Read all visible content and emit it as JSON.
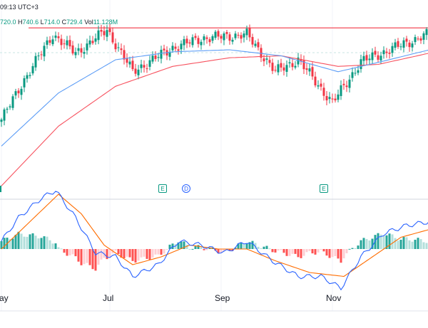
{
  "header": {
    "time_text": "09:13 UTC+3",
    "open_value": "720.0",
    "high_label": "H",
    "high_value": "740.6",
    "low_label": "L",
    "low_value": "714.0",
    "close_label": "C",
    "close_value": "729.4",
    "vol_label": "Vol",
    "vol_value": "11.128M"
  },
  "colors": {
    "up": "#089981",
    "down": "#f23645",
    "ma_fast": "#5b9cf6",
    "ma_slow": "#f7525f",
    "resistance": "#f23645",
    "macd": "#2962ff",
    "signal": "#ff6d00",
    "hist_up_strong": "#26a69a",
    "hist_up_weak": "#b2dfdb",
    "hist_down_strong": "#ff5252",
    "hist_down_weak": "#ffcdd2"
  },
  "events": {
    "earnings_label": "E",
    "dividend_label": "D",
    "items": [
      {
        "type": "E",
        "bar": 57
      },
      {
        "type": "D",
        "bar": 65
      },
      {
        "type": "E",
        "bar": 113
      }
    ]
  },
  "chart_data": [
    {
      "type": "candlestick",
      "x_labels": [
        "ay",
        "Jul",
        "Sep",
        "Nov"
      ],
      "x_label_bars": [
        0,
        38,
        77,
        116
      ],
      "bars_count": 151,
      "resistance_level": 738,
      "ohlc_samples": [
        {
          "bar": 0,
          "close": 600
        },
        {
          "bar": 8,
          "close": 660
        },
        {
          "bar": 18,
          "close": 728
        },
        {
          "bar": 26,
          "close": 700
        },
        {
          "bar": 37,
          "close": 735
        },
        {
          "bar": 46,
          "close": 672
        },
        {
          "bar": 60,
          "close": 708
        },
        {
          "bar": 70,
          "close": 722
        },
        {
          "bar": 86,
          "close": 728
        },
        {
          "bar": 96,
          "close": 672
        },
        {
          "bar": 104,
          "close": 690
        },
        {
          "bar": 116,
          "close": 625
        },
        {
          "bar": 126,
          "close": 687
        },
        {
          "bar": 140,
          "close": 712
        },
        {
          "bar": 150,
          "close": 729.4
        }
      ],
      "ma_fast": [
        {
          "bar": 0,
          "value": 560
        },
        {
          "bar": 20,
          "value": 640
        },
        {
          "bar": 40,
          "value": 690
        },
        {
          "bar": 60,
          "value": 702
        },
        {
          "bar": 80,
          "value": 705
        },
        {
          "bar": 98,
          "value": 696
        },
        {
          "bar": 118,
          "value": 672
        },
        {
          "bar": 132,
          "value": 686
        },
        {
          "bar": 150,
          "value": 705
        }
      ],
      "ma_slow": [
        {
          "bar": 0,
          "value": 500
        },
        {
          "bar": 20,
          "value": 590
        },
        {
          "bar": 40,
          "value": 650
        },
        {
          "bar": 60,
          "value": 680
        },
        {
          "bar": 80,
          "value": 693
        },
        {
          "bar": 98,
          "value": 696
        },
        {
          "bar": 118,
          "value": 680
        },
        {
          "bar": 132,
          "value": 683
        },
        {
          "bar": 150,
          "value": 700
        }
      ],
      "ylim": [
        480,
        780
      ]
    },
    {
      "type": "macd",
      "macd_line": [
        {
          "bar": 0,
          "value": 2
        },
        {
          "bar": 6,
          "value": 8
        },
        {
          "bar": 14,
          "value": 13
        },
        {
          "bar": 19,
          "value": 15
        },
        {
          "bar": 26,
          "value": 8
        },
        {
          "bar": 33,
          "value": -1
        },
        {
          "bar": 40,
          "value": -2
        },
        {
          "bar": 46,
          "value": -7
        },
        {
          "bar": 55,
          "value": -4
        },
        {
          "bar": 62,
          "value": 2
        },
        {
          "bar": 70,
          "value": 1
        },
        {
          "bar": 78,
          "value": -1
        },
        {
          "bar": 86,
          "value": 2
        },
        {
          "bar": 95,
          "value": -3
        },
        {
          "bar": 104,
          "value": -7
        },
        {
          "bar": 112,
          "value": -7
        },
        {
          "bar": 119,
          "value": -10
        },
        {
          "bar": 126,
          "value": -2
        },
        {
          "bar": 134,
          "value": 4
        },
        {
          "bar": 142,
          "value": 6
        },
        {
          "bar": 150,
          "value": 7
        }
      ],
      "signal_line": [
        {
          "bar": 0,
          "value": 0
        },
        {
          "bar": 10,
          "value": 7
        },
        {
          "bar": 20,
          "value": 14
        },
        {
          "bar": 28,
          "value": 9
        },
        {
          "bar": 36,
          "value": 1
        },
        {
          "bar": 46,
          "value": -4
        },
        {
          "bar": 56,
          "value": -2
        },
        {
          "bar": 66,
          "value": 1
        },
        {
          "bar": 76,
          "value": 0
        },
        {
          "bar": 86,
          "value": 0
        },
        {
          "bar": 96,
          "value": -3
        },
        {
          "bar": 108,
          "value": -6
        },
        {
          "bar": 120,
          "value": -7
        },
        {
          "bar": 130,
          "value": -2
        },
        {
          "bar": 140,
          "value": 3
        },
        {
          "bar": 150,
          "value": 5
        }
      ],
      "ylim": [
        -12,
        17
      ]
    }
  ]
}
